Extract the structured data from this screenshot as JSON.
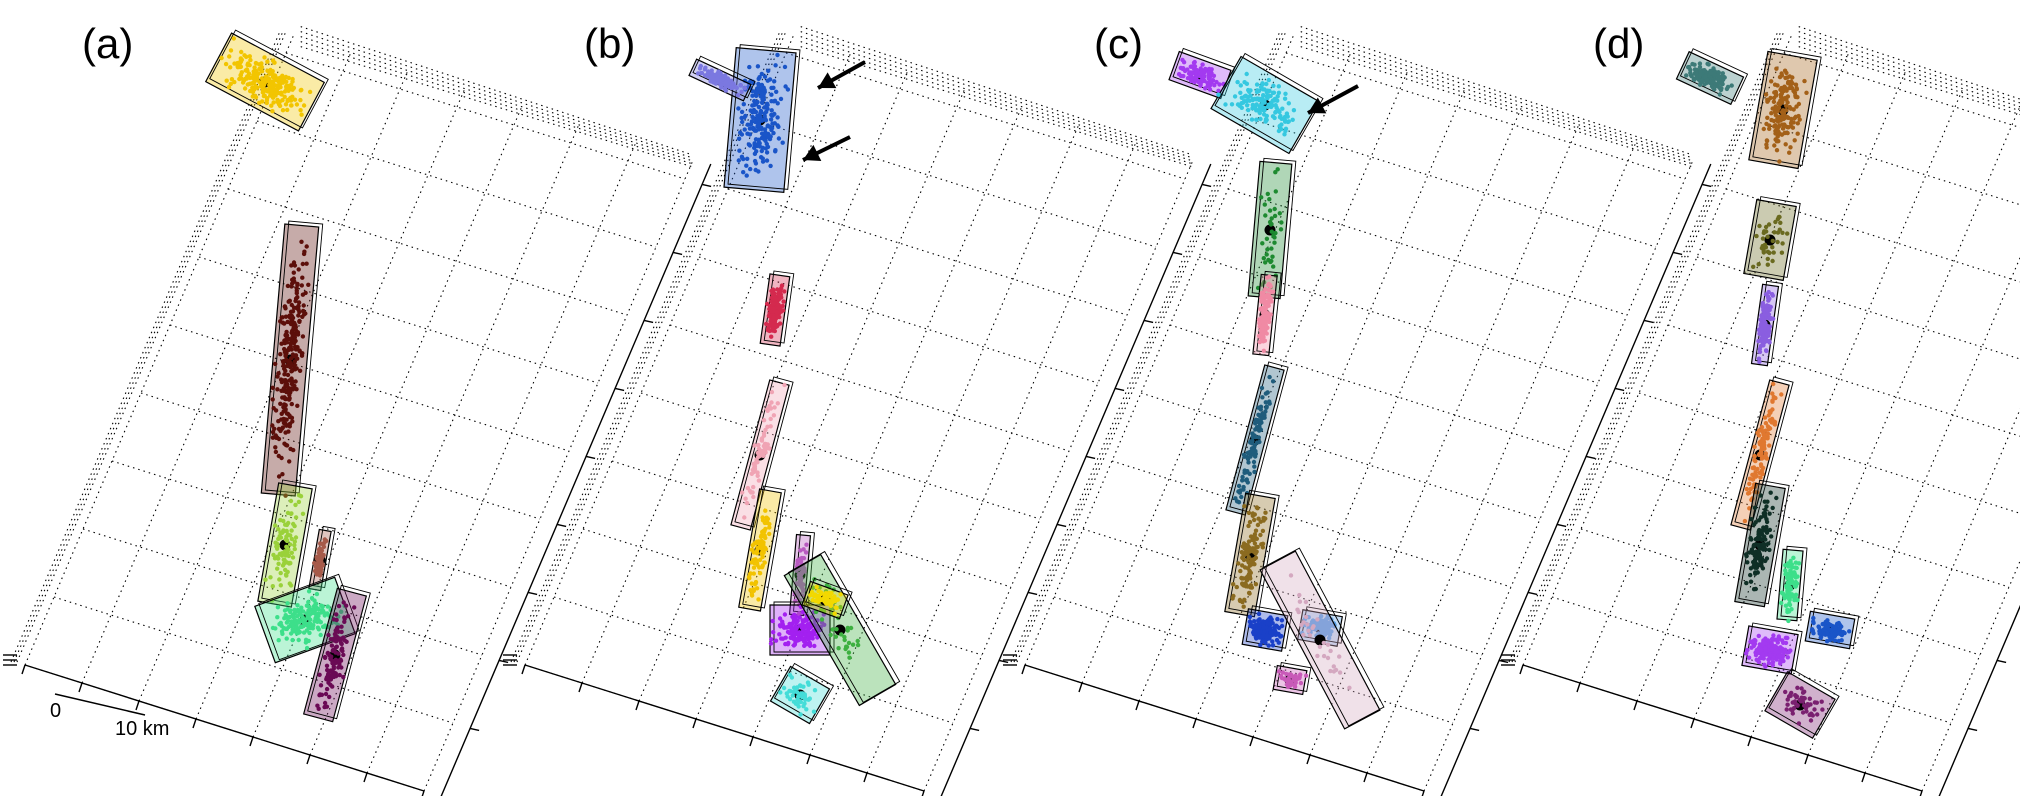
{
  "labels": {
    "a": "(a)",
    "b": "(b)",
    "c": "(c)",
    "d": "(d)"
  },
  "scale": {
    "zero": "0",
    "ten": "10 km"
  },
  "colors": {
    "a": [
      "#f2c500",
      "#5c0f0a",
      "#9ad13a",
      "#a65a4a",
      "#3ddf8a",
      "#6a0a55"
    ],
    "b": [
      "#1a55c8",
      "#7b78e0",
      "#d42a4e",
      "#f0a4b4",
      "#f2c300",
      "#b85ac0",
      "#a320f0",
      "#44ddd8",
      "#3db040",
      "#f2d800"
    ],
    "c": [
      "#a33af0",
      "#35c8e0",
      "#1e8a30",
      "#f08aa4",
      "#1f5c7c",
      "#8b6b20",
      "#1a40c8",
      "#5aa0e8",
      "#c85ab8",
      "#d4a8c0"
    ],
    "d": [
      "#3d7a78",
      "#a36018",
      "#6a6a20",
      "#8a5ee0",
      "#e07830",
      "#0f2f26",
      "#3ddf8a",
      "#a33af0",
      "#1a55c8",
      "#7a2070"
    ]
  },
  "arrows": {
    "b": 2,
    "c": 1
  }
}
